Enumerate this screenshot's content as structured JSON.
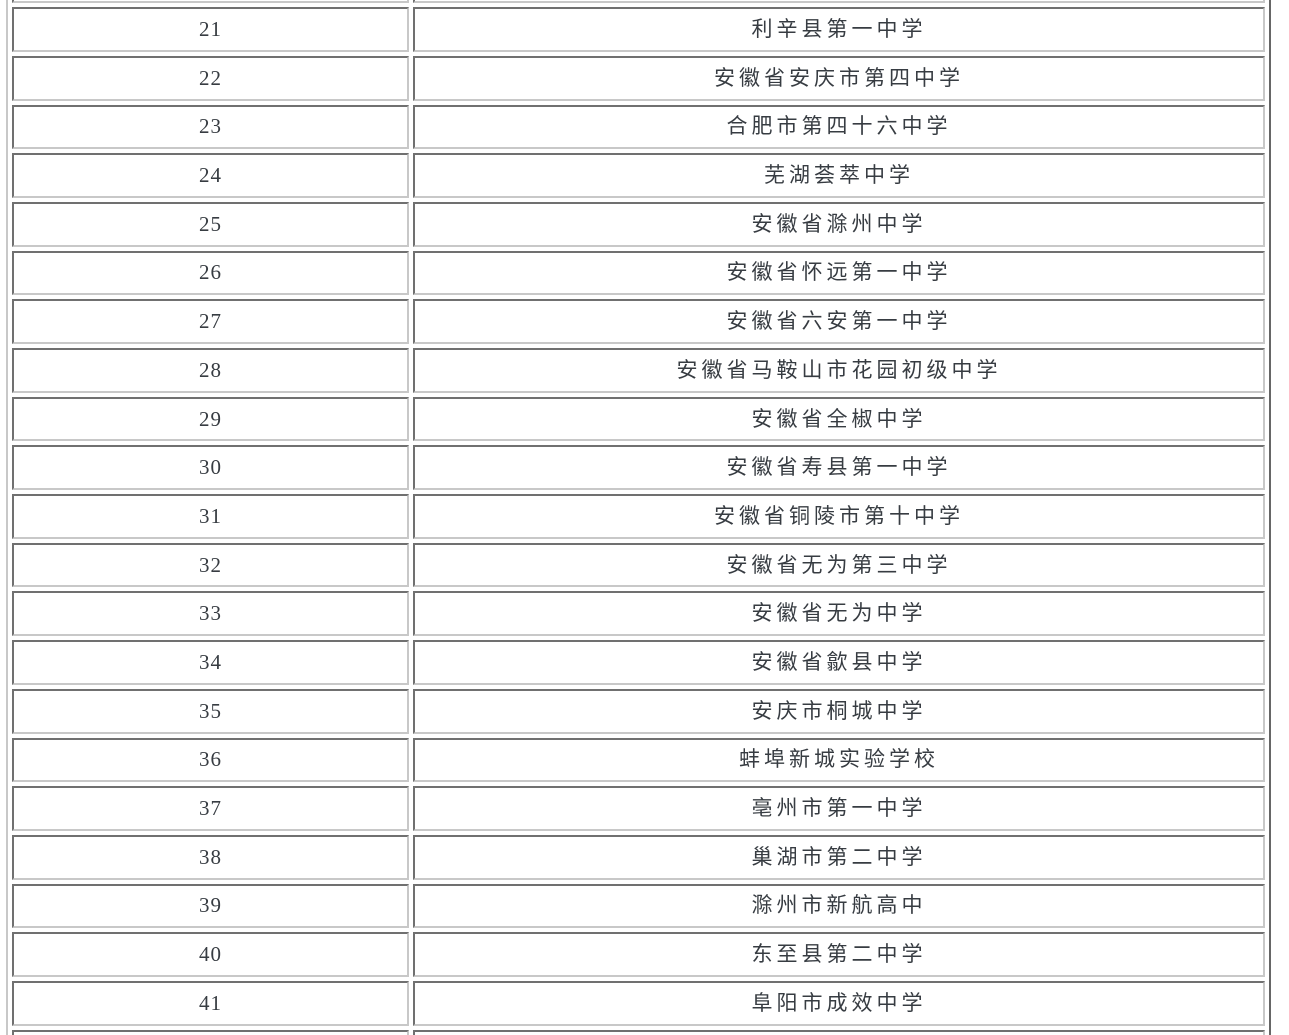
{
  "page": {
    "background_color": "#ffffff",
    "text_color": "#373c42",
    "border_dark_color": "#707070",
    "border_light_color": "#c8c8c8"
  },
  "table": {
    "description": "ranked-school-list",
    "columns": [
      "rank",
      "school_name"
    ],
    "partial_top_row": {
      "rank": "",
      "school": ""
    },
    "partial_bottom_row": {
      "rank": "",
      "school": ""
    },
    "rows": [
      {
        "rank": "21",
        "school": "利辛县第一中学"
      },
      {
        "rank": "22",
        "school": "安徽省安庆市第四中学"
      },
      {
        "rank": "23",
        "school": "合肥市第四十六中学"
      },
      {
        "rank": "24",
        "school": "芜湖荟萃中学"
      },
      {
        "rank": "25",
        "school": "安徽省滁州中学"
      },
      {
        "rank": "26",
        "school": "安徽省怀远第一中学"
      },
      {
        "rank": "27",
        "school": "安徽省六安第一中学"
      },
      {
        "rank": "28",
        "school": "安徽省马鞍山市花园初级中学"
      },
      {
        "rank": "29",
        "school": "安徽省全椒中学"
      },
      {
        "rank": "30",
        "school": "安徽省寿县第一中学"
      },
      {
        "rank": "31",
        "school": "安徽省铜陵市第十中学"
      },
      {
        "rank": "32",
        "school": "安徽省无为第三中学"
      },
      {
        "rank": "33",
        "school": "安徽省无为中学"
      },
      {
        "rank": "34",
        "school": "安徽省歙县中学"
      },
      {
        "rank": "35",
        "school": "安庆市桐城中学"
      },
      {
        "rank": "36",
        "school": "蚌埠新城实验学校"
      },
      {
        "rank": "37",
        "school": "亳州市第一中学"
      },
      {
        "rank": "38",
        "school": "巢湖市第二中学"
      },
      {
        "rank": "39",
        "school": "滁州市新航高中"
      },
      {
        "rank": "40",
        "school": "东至县第二中学"
      },
      {
        "rank": "41",
        "school": "阜阳市成效中学"
      }
    ]
  }
}
